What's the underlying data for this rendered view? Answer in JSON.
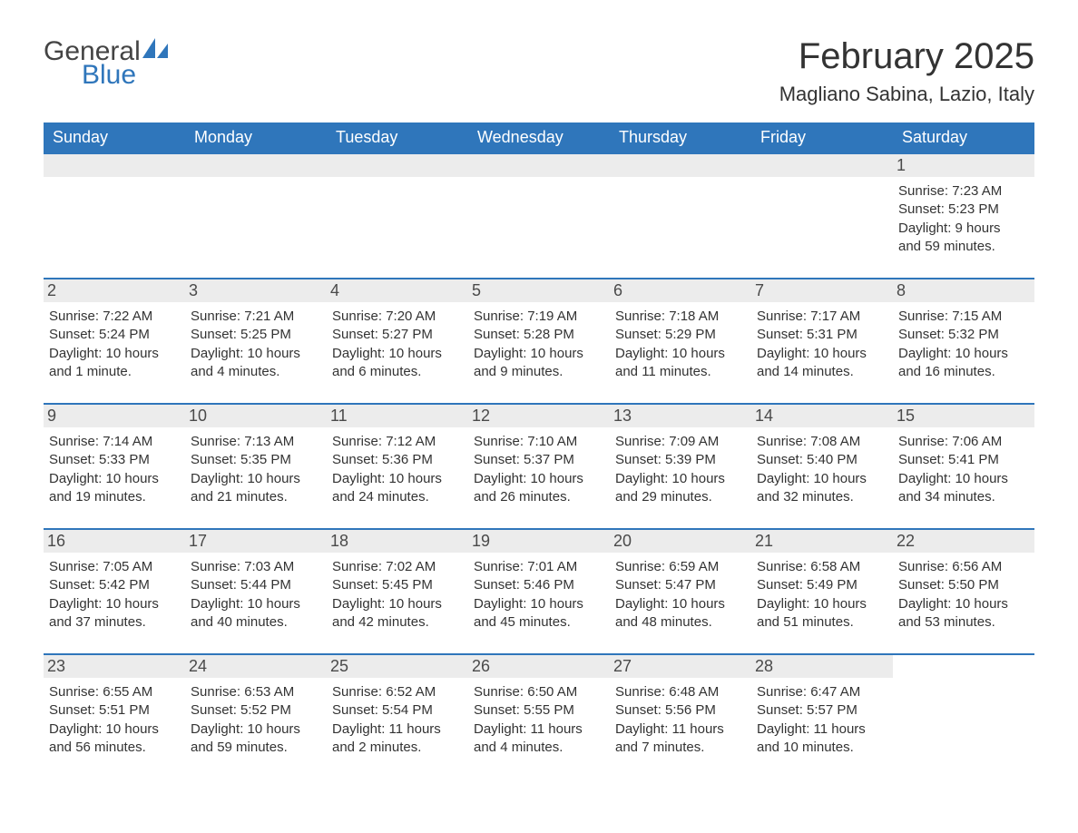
{
  "logo": {
    "text1": "General",
    "text2": "Blue",
    "accent_color": "#2f76bb"
  },
  "title": "February 2025",
  "location": "Magliano Sabina, Lazio, Italy",
  "colors": {
    "header_bg": "#2f76bb",
    "header_text": "#ffffff",
    "daynum_bg": "#ececec",
    "daynum_text": "#4a4a4a",
    "body_text": "#333333",
    "row_border": "#2f76bb",
    "page_bg": "#ffffff"
  },
  "fonts": {
    "title_size_pt": 30,
    "location_size_pt": 17,
    "dow_size_pt": 14,
    "daynum_size_pt": 14,
    "body_size_pt": 11
  },
  "days_of_week": [
    "Sunday",
    "Monday",
    "Tuesday",
    "Wednesday",
    "Thursday",
    "Friday",
    "Saturday"
  ],
  "weeks": [
    [
      {
        "blank": true
      },
      {
        "blank": true
      },
      {
        "blank": true
      },
      {
        "blank": true
      },
      {
        "blank": true
      },
      {
        "blank": true
      },
      {
        "day": "1",
        "sunrise": "Sunrise: 7:23 AM",
        "sunset": "Sunset: 5:23 PM",
        "dl1": "Daylight: 9 hours",
        "dl2": "and 59 minutes."
      }
    ],
    [
      {
        "day": "2",
        "sunrise": "Sunrise: 7:22 AM",
        "sunset": "Sunset: 5:24 PM",
        "dl1": "Daylight: 10 hours",
        "dl2": "and 1 minute."
      },
      {
        "day": "3",
        "sunrise": "Sunrise: 7:21 AM",
        "sunset": "Sunset: 5:25 PM",
        "dl1": "Daylight: 10 hours",
        "dl2": "and 4 minutes."
      },
      {
        "day": "4",
        "sunrise": "Sunrise: 7:20 AM",
        "sunset": "Sunset: 5:27 PM",
        "dl1": "Daylight: 10 hours",
        "dl2": "and 6 minutes."
      },
      {
        "day": "5",
        "sunrise": "Sunrise: 7:19 AM",
        "sunset": "Sunset: 5:28 PM",
        "dl1": "Daylight: 10 hours",
        "dl2": "and 9 minutes."
      },
      {
        "day": "6",
        "sunrise": "Sunrise: 7:18 AM",
        "sunset": "Sunset: 5:29 PM",
        "dl1": "Daylight: 10 hours",
        "dl2": "and 11 minutes."
      },
      {
        "day": "7",
        "sunrise": "Sunrise: 7:17 AM",
        "sunset": "Sunset: 5:31 PM",
        "dl1": "Daylight: 10 hours",
        "dl2": "and 14 minutes."
      },
      {
        "day": "8",
        "sunrise": "Sunrise: 7:15 AM",
        "sunset": "Sunset: 5:32 PM",
        "dl1": "Daylight: 10 hours",
        "dl2": "and 16 minutes."
      }
    ],
    [
      {
        "day": "9",
        "sunrise": "Sunrise: 7:14 AM",
        "sunset": "Sunset: 5:33 PM",
        "dl1": "Daylight: 10 hours",
        "dl2": "and 19 minutes."
      },
      {
        "day": "10",
        "sunrise": "Sunrise: 7:13 AM",
        "sunset": "Sunset: 5:35 PM",
        "dl1": "Daylight: 10 hours",
        "dl2": "and 21 minutes."
      },
      {
        "day": "11",
        "sunrise": "Sunrise: 7:12 AM",
        "sunset": "Sunset: 5:36 PM",
        "dl1": "Daylight: 10 hours",
        "dl2": "and 24 minutes."
      },
      {
        "day": "12",
        "sunrise": "Sunrise: 7:10 AM",
        "sunset": "Sunset: 5:37 PM",
        "dl1": "Daylight: 10 hours",
        "dl2": "and 26 minutes."
      },
      {
        "day": "13",
        "sunrise": "Sunrise: 7:09 AM",
        "sunset": "Sunset: 5:39 PM",
        "dl1": "Daylight: 10 hours",
        "dl2": "and 29 minutes."
      },
      {
        "day": "14",
        "sunrise": "Sunrise: 7:08 AM",
        "sunset": "Sunset: 5:40 PM",
        "dl1": "Daylight: 10 hours",
        "dl2": "and 32 minutes."
      },
      {
        "day": "15",
        "sunrise": "Sunrise: 7:06 AM",
        "sunset": "Sunset: 5:41 PM",
        "dl1": "Daylight: 10 hours",
        "dl2": "and 34 minutes."
      }
    ],
    [
      {
        "day": "16",
        "sunrise": "Sunrise: 7:05 AM",
        "sunset": "Sunset: 5:42 PM",
        "dl1": "Daylight: 10 hours",
        "dl2": "and 37 minutes."
      },
      {
        "day": "17",
        "sunrise": "Sunrise: 7:03 AM",
        "sunset": "Sunset: 5:44 PM",
        "dl1": "Daylight: 10 hours",
        "dl2": "and 40 minutes."
      },
      {
        "day": "18",
        "sunrise": "Sunrise: 7:02 AM",
        "sunset": "Sunset: 5:45 PM",
        "dl1": "Daylight: 10 hours",
        "dl2": "and 42 minutes."
      },
      {
        "day": "19",
        "sunrise": "Sunrise: 7:01 AM",
        "sunset": "Sunset: 5:46 PM",
        "dl1": "Daylight: 10 hours",
        "dl2": "and 45 minutes."
      },
      {
        "day": "20",
        "sunrise": "Sunrise: 6:59 AM",
        "sunset": "Sunset: 5:47 PM",
        "dl1": "Daylight: 10 hours",
        "dl2": "and 48 minutes."
      },
      {
        "day": "21",
        "sunrise": "Sunrise: 6:58 AM",
        "sunset": "Sunset: 5:49 PM",
        "dl1": "Daylight: 10 hours",
        "dl2": "and 51 minutes."
      },
      {
        "day": "22",
        "sunrise": "Sunrise: 6:56 AM",
        "sunset": "Sunset: 5:50 PM",
        "dl1": "Daylight: 10 hours",
        "dl2": "and 53 minutes."
      }
    ],
    [
      {
        "day": "23",
        "sunrise": "Sunrise: 6:55 AM",
        "sunset": "Sunset: 5:51 PM",
        "dl1": "Daylight: 10 hours",
        "dl2": "and 56 minutes."
      },
      {
        "day": "24",
        "sunrise": "Sunrise: 6:53 AM",
        "sunset": "Sunset: 5:52 PM",
        "dl1": "Daylight: 10 hours",
        "dl2": "and 59 minutes."
      },
      {
        "day": "25",
        "sunrise": "Sunrise: 6:52 AM",
        "sunset": "Sunset: 5:54 PM",
        "dl1": "Daylight: 11 hours",
        "dl2": "and 2 minutes."
      },
      {
        "day": "26",
        "sunrise": "Sunrise: 6:50 AM",
        "sunset": "Sunset: 5:55 PM",
        "dl1": "Daylight: 11 hours",
        "dl2": "and 4 minutes."
      },
      {
        "day": "27",
        "sunrise": "Sunrise: 6:48 AM",
        "sunset": "Sunset: 5:56 PM",
        "dl1": "Daylight: 11 hours",
        "dl2": "and 7 minutes."
      },
      {
        "day": "28",
        "sunrise": "Sunrise: 6:47 AM",
        "sunset": "Sunset: 5:57 PM",
        "dl1": "Daylight: 11 hours",
        "dl2": "and 10 minutes."
      },
      {
        "blank": true,
        "noBand": true
      }
    ]
  ]
}
